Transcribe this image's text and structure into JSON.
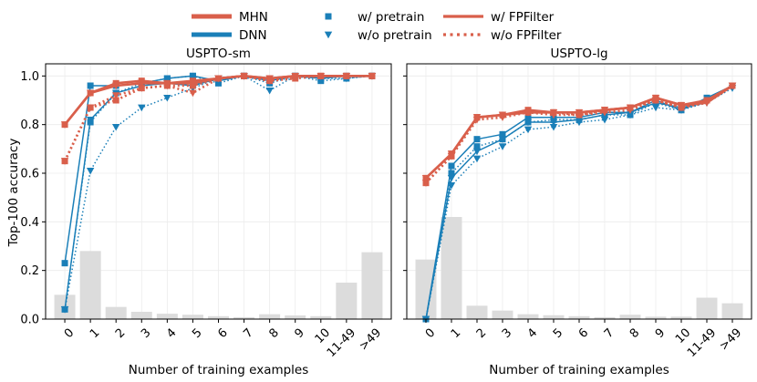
{
  "chart_data": {
    "type": "line",
    "legend": {
      "placement": "top-center",
      "entries": [
        {
          "label": "MHN",
          "kind": "line",
          "color": "#d95f4b"
        },
        {
          "label": "DNN",
          "kind": "line",
          "color": "#1a7fb8"
        },
        {
          "label": "w/ pretrain",
          "kind": "marker-square",
          "color": "#1a7fb8"
        },
        {
          "label": "w/o pretrain",
          "kind": "marker-triangle",
          "color": "#1a7fb8"
        },
        {
          "label": "w/ FPFilter",
          "kind": "solid",
          "color": "#d95f4b"
        },
        {
          "label": "w/o FPFilter",
          "kind": "dotted",
          "color": "#d95f4b"
        }
      ]
    },
    "categories": [
      "0",
      "1",
      "2",
      "3",
      "4",
      "5",
      "6",
      "7",
      "8",
      "9",
      "10",
      "11-49",
      ">49"
    ],
    "xlabel": "Number of training examples",
    "ylabel": "Top-100 accuracy",
    "ylim": [
      0,
      1.05
    ],
    "yticks": [
      "0.0",
      "0.2",
      "0.4",
      "0.6",
      "0.8",
      "1.0"
    ],
    "grid": true,
    "colors": {
      "mhn": "#d95f4b",
      "dnn": "#1a7fb8",
      "bars": "#dcdcdc"
    },
    "panels": [
      {
        "title": "USPTO-sm",
        "bars": [
          0.1,
          0.28,
          0.05,
          0.03,
          0.022,
          0.018,
          0.012,
          0.008,
          0.02,
          0.015,
          0.012,
          0.15,
          0.275
        ],
        "series": [
          {
            "model": "MHN",
            "pretrain": true,
            "fpfilter": true,
            "values": [
              0.8,
              0.93,
              0.97,
              0.98,
              0.97,
              0.98,
              0.99,
              1.0,
              0.99,
              1.0,
              1.0,
              1.0,
              1.0
            ]
          },
          {
            "model": "MHN",
            "pretrain": true,
            "fpfilter": false,
            "values": [
              0.65,
              0.87,
              0.9,
              0.95,
              0.96,
              0.96,
              0.99,
              1.0,
              0.98,
              0.99,
              1.0,
              1.0,
              1.0
            ]
          },
          {
            "model": "MHN",
            "pretrain": false,
            "fpfilter": true,
            "values": [
              0.8,
              0.93,
              0.96,
              0.97,
              0.97,
              0.97,
              0.99,
              1.0,
              0.99,
              1.0,
              1.0,
              1.0,
              1.0
            ]
          },
          {
            "model": "MHN",
            "pretrain": false,
            "fpfilter": false,
            "values": [
              0.65,
              0.87,
              0.92,
              0.95,
              0.96,
              0.93,
              0.99,
              1.0,
              0.98,
              1.0,
              1.0,
              1.0,
              1.0
            ]
          },
          {
            "model": "DNN",
            "pretrain": true,
            "fpfilter": true,
            "values": [
              0.23,
              0.96,
              0.96,
              0.97,
              0.99,
              1.0,
              0.98,
              1.0,
              0.98,
              1.0,
              0.99,
              1.0,
              1.0
            ]
          },
          {
            "model": "DNN",
            "pretrain": true,
            "fpfilter": false,
            "values": [
              0.04,
              0.81,
              0.93,
              0.97,
              0.99,
              1.0,
              0.97,
              1.0,
              0.97,
              1.0,
              0.98,
              0.99,
              1.0
            ]
          },
          {
            "model": "DNN",
            "pretrain": false,
            "fpfilter": true,
            "values": [
              0.04,
              0.82,
              0.93,
              0.96,
              0.97,
              0.96,
              0.99,
              1.0,
              0.99,
              1.0,
              0.99,
              1.0,
              1.0
            ]
          },
          {
            "model": "DNN",
            "pretrain": false,
            "fpfilter": false,
            "values": [
              0.04,
              0.61,
              0.79,
              0.87,
              0.91,
              0.95,
              0.99,
              1.0,
              0.94,
              1.0,
              0.99,
              0.99,
              1.0
            ]
          }
        ]
      },
      {
        "title": "USPTO-lg",
        "bars": [
          0.245,
          0.42,
          0.055,
          0.035,
          0.02,
          0.016,
          0.012,
          0.008,
          0.018,
          0.01,
          0.01,
          0.088,
          0.065
        ],
        "series": [
          {
            "model": "MHN",
            "pretrain": true,
            "fpfilter": true,
            "values": [
              0.58,
              0.68,
              0.83,
              0.84,
              0.86,
              0.85,
              0.85,
              0.86,
              0.87,
              0.91,
              0.88,
              0.9,
              0.96
            ]
          },
          {
            "model": "MHN",
            "pretrain": true,
            "fpfilter": false,
            "values": [
              0.56,
              0.67,
              0.83,
              0.84,
              0.85,
              0.85,
              0.84,
              0.86,
              0.87,
              0.9,
              0.87,
              0.9,
              0.96
            ]
          },
          {
            "model": "MHN",
            "pretrain": false,
            "fpfilter": true,
            "values": [
              0.58,
              0.68,
              0.83,
              0.84,
              0.85,
              0.85,
              0.85,
              0.86,
              0.87,
              0.91,
              0.88,
              0.89,
              0.96
            ]
          },
          {
            "model": "MHN",
            "pretrain": false,
            "fpfilter": false,
            "values": [
              0.56,
              0.67,
              0.82,
              0.83,
              0.85,
              0.84,
              0.84,
              0.85,
              0.86,
              0.9,
              0.87,
              0.89,
              0.96
            ]
          },
          {
            "model": "DNN",
            "pretrain": true,
            "fpfilter": true,
            "values": [
              0.0,
              0.63,
              0.74,
              0.76,
              0.83,
              0.83,
              0.83,
              0.85,
              0.85,
              0.9,
              0.86,
              0.91,
              0.96
            ]
          },
          {
            "model": "DNN",
            "pretrain": true,
            "fpfilter": false,
            "values": [
              0.0,
              0.6,
              0.71,
              0.74,
              0.81,
              0.82,
              0.82,
              0.84,
              0.84,
              0.89,
              0.86,
              0.9,
              0.96
            ]
          },
          {
            "model": "DNN",
            "pretrain": false,
            "fpfilter": true,
            "values": [
              0.0,
              0.58,
              0.69,
              0.74,
              0.81,
              0.81,
              0.82,
              0.84,
              0.85,
              0.89,
              0.87,
              0.89,
              0.96
            ]
          },
          {
            "model": "DNN",
            "pretrain": false,
            "fpfilter": false,
            "values": [
              0.0,
              0.55,
              0.66,
              0.71,
              0.78,
              0.79,
              0.81,
              0.82,
              0.84,
              0.87,
              0.86,
              0.89,
              0.95
            ]
          }
        ]
      }
    ]
  }
}
